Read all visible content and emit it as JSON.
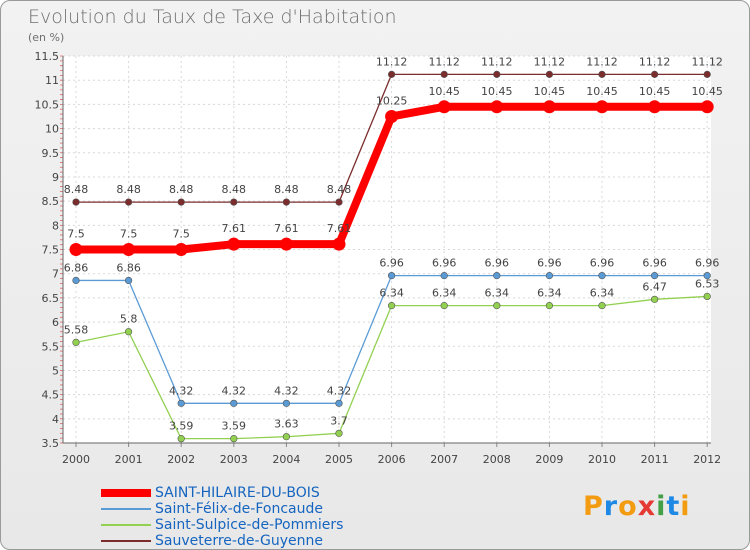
{
  "chart_data": {
    "type": "line",
    "title": "Evolution du Taux de Taxe d'Habitation",
    "subtitle": "(en %)",
    "x": [
      "2000",
      "2001",
      "2002",
      "2003",
      "2004",
      "2005",
      "2006",
      "2007",
      "2008",
      "2009",
      "2010",
      "2011",
      "2012"
    ],
    "yticks": [
      "3.5",
      "4",
      "4.5",
      "5",
      "5.5",
      "6",
      "6.5",
      "7",
      "7.5",
      "8",
      "8.5",
      "9",
      "9.5",
      "10",
      "10.5",
      "11",
      "11.5"
    ],
    "ylim": [
      3.5,
      11.5
    ],
    "grid": true,
    "series": [
      {
        "name": "SAINT-HILAIRE-DU-BOIS",
        "color": "#ff0000",
        "values": [
          7.5,
          7.5,
          7.5,
          7.61,
          7.61,
          7.61,
          10.25,
          10.45,
          10.45,
          10.45,
          10.45,
          10.45,
          10.45
        ],
        "labels": [
          "7.5",
          "7.5",
          "7.5",
          "7.61",
          "7.61",
          "7.61",
          "10.25",
          "10.45",
          "10.45",
          "10.45",
          "10.45",
          "10.45",
          "10.45"
        ]
      },
      {
        "name": "Saint-Félix-de-Foncaude",
        "color": "#5b9bd5",
        "values": [
          6.86,
          6.86,
          4.32,
          4.32,
          4.32,
          4.32,
          6.96,
          6.96,
          6.96,
          6.96,
          6.96,
          6.96,
          6.96
        ],
        "labels": [
          "6.86",
          "6.86",
          "4.32",
          "4.32",
          "4.32",
          "4.32",
          "6.96",
          "6.96",
          "6.96",
          "6.96",
          "6.96",
          "6.96",
          "6.96"
        ]
      },
      {
        "name": "Saint-Sulpice-de-Pommiers",
        "color": "#92d050",
        "values": [
          5.58,
          5.8,
          3.59,
          3.59,
          3.63,
          3.7,
          6.34,
          6.34,
          6.34,
          6.34,
          6.34,
          6.47,
          6.53
        ],
        "labels": [
          "5.58",
          "5.8",
          "3.59",
          "3.59",
          "3.63",
          "3.7",
          "6.34",
          "6.34",
          "6.34",
          "6.34",
          "6.34",
          "6.47",
          "6.53"
        ]
      },
      {
        "name": "Sauveterre-de-Guyenne",
        "color": "#7b2c2c",
        "values": [
          8.48,
          8.48,
          8.48,
          8.48,
          8.48,
          8.48,
          11.12,
          11.12,
          11.12,
          11.12,
          11.12,
          11.12,
          11.12
        ],
        "labels": [
          "8.48",
          "8.48",
          "8.48",
          "8.48",
          "8.48",
          "8.48",
          "11.12",
          "11.12",
          "11.12",
          "11.12",
          "11.12",
          "11.12",
          "11.12"
        ]
      }
    ]
  },
  "brand": {
    "letters": [
      "P",
      "r",
      "o",
      "x",
      "i",
      "t",
      "i"
    ],
    "colors": [
      "#f39c12",
      "#1e88e5",
      "#f39c12",
      "#e53935",
      "#43a047",
      "#1e88e5",
      "#f39c12"
    ]
  }
}
